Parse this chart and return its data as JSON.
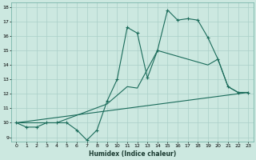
{
  "xlabel": "Humidex (Indice chaleur)",
  "xlim": [
    -0.5,
    23.5
  ],
  "ylim": [
    8.7,
    18.3
  ],
  "bg_color": "#cce8e0",
  "grid_color": "#aacfc8",
  "line_color": "#1a6b5a",
  "line1_x": [
    0,
    1,
    2,
    3,
    4,
    5,
    6,
    7,
    8,
    9,
    10,
    11,
    12,
    13,
    14,
    15,
    16,
    17,
    18,
    19,
    20,
    21,
    22,
    23
  ],
  "line1_y": [
    10.0,
    9.7,
    9.7,
    10.0,
    10.0,
    10.0,
    9.5,
    8.8,
    9.5,
    11.5,
    13.0,
    16.6,
    16.2,
    13.1,
    15.0,
    17.8,
    17.1,
    17.2,
    17.1,
    15.9,
    14.4,
    12.5,
    12.1,
    12.1
  ],
  "line2_x": [
    0,
    23
  ],
  "line2_y": [
    10.0,
    12.1
  ],
  "line3_x": [
    0,
    4,
    9,
    11,
    12,
    14,
    19,
    20,
    21,
    22,
    23
  ],
  "line3_y": [
    10.0,
    10.0,
    11.3,
    12.5,
    12.4,
    15.0,
    14.0,
    14.4,
    12.5,
    12.1,
    12.1
  ],
  "xticks": [
    0,
    1,
    2,
    3,
    4,
    5,
    6,
    7,
    8,
    9,
    10,
    11,
    12,
    13,
    14,
    15,
    16,
    17,
    18,
    19,
    20,
    21,
    22,
    23
  ],
  "yticks": [
    9,
    10,
    11,
    12,
    13,
    14,
    15,
    16,
    17,
    18
  ]
}
